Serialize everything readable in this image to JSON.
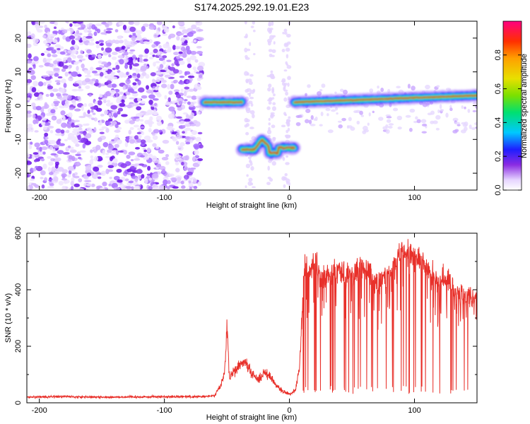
{
  "title": "S174.2025.292.19.01.E23",
  "chart_data": [
    {
      "type": "heatmap",
      "xlabel": "Height of straight line (km)",
      "ylabel": "Frequency (Hz)",
      "xlim": [
        -210,
        150
      ],
      "ylim": [
        -25,
        25
      ],
      "xticks": [
        -200,
        -100,
        0,
        100
      ],
      "yticks": [
        -20,
        -10,
        0,
        10,
        20
      ],
      "colorbar": {
        "label": "Normalized spectral amplitude",
        "range": [
          0,
          1
        ],
        "ticks": [
          "0.0",
          "0.2",
          "0.4",
          "0.6",
          "0.8"
        ]
      },
      "features": [
        {
          "name": "noise region",
          "x_range": [
            -210,
            -70
          ],
          "y_range": [
            -25,
            25
          ]
        },
        {
          "name": "band near 0 Hz",
          "x_range": [
            -68,
            -38
          ],
          "y": 1
        },
        {
          "name": "band near -13 Hz",
          "x_range": [
            -38,
            4
          ],
          "y": -13
        },
        {
          "name": "band near 1 Hz",
          "x_range": [
            4,
            150
          ],
          "y_start": 1,
          "y_end": 3
        }
      ]
    },
    {
      "type": "line",
      "xlabel": "Height of straight line (km)",
      "ylabel": "SNR (10 * v/v)",
      "xlim": [
        -210,
        150
      ],
      "ylim": [
        0,
        600
      ],
      "xticks": [
        -200,
        -100,
        0,
        100
      ],
      "yticks": [
        0,
        200,
        400,
        600
      ],
      "series": [
        {
          "color": "#e8302a",
          "points": [
            [
              -210,
              20
            ],
            [
              -180,
              22
            ],
            [
              -150,
              20
            ],
            [
              -120,
              21
            ],
            [
              -90,
              22
            ],
            [
              -70,
              22
            ],
            [
              -60,
              25
            ],
            [
              -55,
              60
            ],
            [
              -52,
              100
            ],
            [
              -50,
              265
            ],
            [
              -48,
              90
            ],
            [
              -45,
              110
            ],
            [
              -40,
              130
            ],
            [
              -35,
              145
            ],
            [
              -30,
              100
            ],
            [
              -25,
              80
            ],
            [
              -20,
              110
            ],
            [
              -15,
              90
            ],
            [
              -10,
              60
            ],
            [
              -5,
              40
            ],
            [
              0,
              30
            ],
            [
              5,
              45
            ],
            [
              8,
              120
            ],
            [
              10,
              300
            ],
            [
              12,
              480
            ],
            [
              15,
              450
            ],
            [
              20,
              500
            ],
            [
              25,
              430
            ],
            [
              30,
              460
            ],
            [
              40,
              470
            ],
            [
              50,
              450
            ],
            [
              60,
              480
            ],
            [
              70,
              420
            ],
            [
              80,
              460
            ],
            [
              90,
              540
            ],
            [
              100,
              520
            ],
            [
              110,
              470
            ],
            [
              120,
              440
            ],
            [
              130,
              420
            ],
            [
              140,
              360
            ],
            [
              150,
              380
            ]
          ]
        }
      ]
    }
  ]
}
